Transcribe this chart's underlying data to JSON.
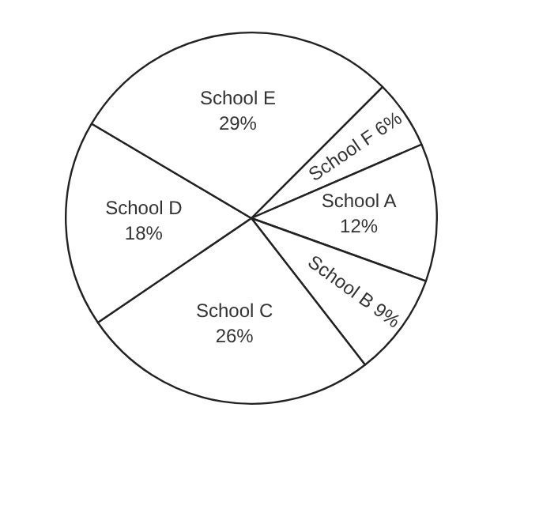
{
  "chart_data": {
    "type": "pie",
    "categories": [
      "School F",
      "School A",
      "School B",
      "School C",
      "School D",
      "School E"
    ],
    "values": [
      6,
      12,
      9,
      26,
      18,
      29
    ],
    "value_labels": [
      "6%",
      "12%",
      "9%",
      "26%",
      "18%",
      "29%"
    ],
    "colors": [
      "#ffffff",
      "#ffffff",
      "#ffffff",
      "#ffffff",
      "#ffffff",
      "#ffffff"
    ],
    "legend": false
  }
}
